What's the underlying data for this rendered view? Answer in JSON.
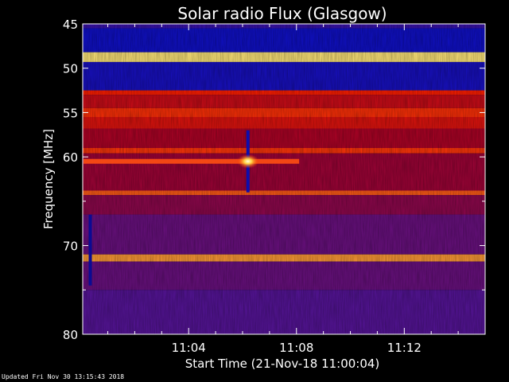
{
  "footer": {
    "updated": "Updated Fri Nov 30 13:15:43 2018"
  },
  "chart_data": {
    "type": "heatmap",
    "title": "Solar radio Flux (Glasgow)",
    "xlabel": "Start Time (21-Nov-18 11:00:04)",
    "ylabel": "Frequency [MHz]",
    "x_range_minutes_after_11_00": [
      0.07,
      15.0
    ],
    "x_ticks": [
      {
        "label": "11:04",
        "minute": 4
      },
      {
        "label": "11:08",
        "minute": 8
      },
      {
        "label": "11:12",
        "minute": 12
      }
    ],
    "ylim": [
      45,
      80
    ],
    "y_axis_direction": "increasing downward",
    "y_ticks": [
      45,
      50,
      55,
      60,
      65,
      70,
      75,
      80
    ],
    "y_tick_labels": [
      "45",
      "50",
      "55",
      "60",
      "",
      "70",
      "",
      "80"
    ],
    "colormap": "black-blue-red-yellow-white",
    "colors": {
      "background": "#000000",
      "low": "#1010c8",
      "medium": "#a00050",
      "high": "#ff2000",
      "peak": "#ffffc0"
    },
    "frequency_bands": [
      {
        "from": 45.0,
        "to": 45.5,
        "level": 0.22
      },
      {
        "from": 45.5,
        "to": 48.2,
        "level": 0.12
      },
      {
        "from": 48.2,
        "to": 49.3,
        "level": 0.92
      },
      {
        "from": 49.3,
        "to": 52.5,
        "level": 0.14
      },
      {
        "from": 52.5,
        "to": 53.0,
        "level": 0.62
      },
      {
        "from": 53.0,
        "to": 54.5,
        "level": 0.52
      },
      {
        "from": 54.5,
        "to": 55.5,
        "level": 0.65
      },
      {
        "from": 55.5,
        "to": 56.8,
        "level": 0.56
      },
      {
        "from": 56.8,
        "to": 59.0,
        "level": 0.46
      },
      {
        "from": 59.0,
        "to": 59.6,
        "level": 0.66
      },
      {
        "from": 59.6,
        "to": 63.8,
        "level": 0.43
      },
      {
        "from": 63.8,
        "to": 64.3,
        "level": 0.72
      },
      {
        "from": 64.3,
        "to": 66.5,
        "level": 0.4
      },
      {
        "from": 66.5,
        "to": 71.0,
        "level": 0.33
      },
      {
        "from": 71.0,
        "to": 71.8,
        "level": 0.82
      },
      {
        "from": 71.8,
        "to": 75.0,
        "level": 0.33
      },
      {
        "from": 75.0,
        "to": 80.0,
        "level": 0.29
      }
    ],
    "burst": {
      "minute": 6.2,
      "frequency": 60.5,
      "level": 1.0
    },
    "burst_line": {
      "from_minute": 0.1,
      "to_minute": 8.1,
      "frequency": 60.5,
      "level": 0.7
    },
    "vertical_streaks": [
      {
        "minute": 6.2,
        "from": 57.0,
        "to": 64.0,
        "level": 0.1
      },
      {
        "minute": 0.35,
        "from": 66.5,
        "to": 74.5,
        "level": 0.08
      }
    ]
  }
}
